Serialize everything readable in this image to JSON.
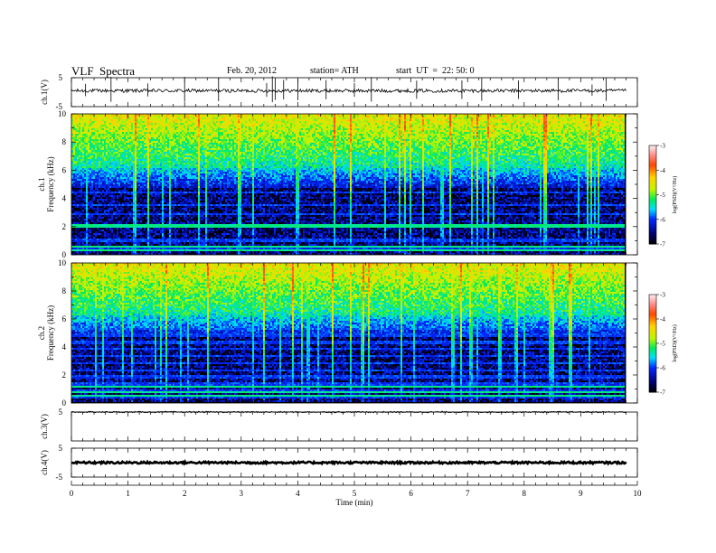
{
  "header": {
    "title": "VLF  Spectra",
    "date": "Feb. 20, 2012",
    "station": "station= ATH",
    "start": "start  UT  =  22: 50: 0"
  },
  "chart_data": [
    {
      "type": "line",
      "panel": "ch1-waveform",
      "ylabel": "ch.1(V)",
      "ylim": [
        -5,
        5
      ],
      "yticks": [
        "5",
        "-5"
      ],
      "xlim": [
        0,
        10
      ],
      "data_extent_min": 9.8,
      "baseline": 0.5,
      "noise": 0.6,
      "spike_times": [
        0.25,
        0.7,
        1.35,
        2.0,
        2.6,
        3.45,
        3.55,
        3.6,
        3.75,
        4.0,
        4.5,
        5.0,
        5.3,
        6.1,
        6.9,
        7.25,
        7.9,
        8.6,
        9.2,
        9.45
      ]
    },
    {
      "type": "heatmap",
      "panel": "ch1-spectrogram",
      "ylabel": "ch.1\nFrequency  (kHz)",
      "ylim": [
        0,
        10
      ],
      "yticks": [
        "0",
        "2",
        "4",
        "6",
        "8",
        "10"
      ],
      "xlim": [
        0,
        10
      ],
      "data_extent_min": 9.8,
      "colorbar": {
        "label": "log(PSD)(V²/Hz)",
        "range": [
          -7,
          -3
        ],
        "ticks": [
          "-3",
          "-4",
          "-5",
          "-6",
          "-7"
        ]
      },
      "harmonic_lines_khz": [
        0.5,
        1.0,
        2.05,
        2.9,
        3.5,
        4.4,
        5.8,
        6.2
      ],
      "dominant_band": "high log(PSD) (-5 to -4) above 6 kHz, low (-7) at 1-4 kHz",
      "strong_lines_khz": [
        0.35,
        0.55,
        2.05
      ]
    },
    {
      "type": "heatmap",
      "panel": "ch2-spectrogram",
      "ylabel": "ch.2\nFrequency  (kHz)",
      "ylim": [
        0,
        10
      ],
      "yticks": [
        "0",
        "2",
        "4",
        "6",
        "8",
        "10"
      ],
      "xlim": [
        0,
        10
      ],
      "data_extent_min": 9.8,
      "colorbar": {
        "label": "log(PSD)(V²/Hz)",
        "range": [
          -7,
          -3
        ],
        "ticks": [
          "-3",
          "-4",
          "-5",
          "-6",
          "-7"
        ]
      },
      "harmonic_lines_khz": [
        0.3,
        0.8,
        1.3,
        1.8,
        2.3,
        2.8,
        3.3,
        3.8,
        4.3,
        4.8,
        5.3
      ],
      "dominant_band": "high log(PSD) (-5 to -4) above 6 kHz, -6 lines below 5 kHz",
      "strong_lines_khz": [
        0.5,
        0.75,
        1.1
      ]
    },
    {
      "type": "line",
      "panel": "ch3-waveform",
      "ylabel": "ch.3(V)",
      "ylim": [
        -5,
        5
      ],
      "yticks": [
        "5"
      ],
      "xlim": [
        0,
        10
      ],
      "data_extent_min": 9.8,
      "baseline": 5.0,
      "noise": 0.25,
      "spike_times": []
    },
    {
      "type": "line",
      "panel": "ch4-waveform",
      "ylabel": "ch.4(V)",
      "ylim": [
        -5,
        5
      ],
      "yticks": [
        "5",
        "-5"
      ],
      "xlim": [
        0,
        10
      ],
      "data_extent_min": 9.8,
      "baseline": 0.0,
      "noise": 0.35,
      "spike_times": []
    }
  ],
  "xaxis": {
    "label": "Time  (min)",
    "ticks": [
      "0",
      "1",
      "2",
      "3",
      "4",
      "5",
      "6",
      "7",
      "8",
      "9",
      "10"
    ]
  },
  "colors": {
    "plot_bg_spectrogram": "#000000",
    "axis": "#000000",
    "waveform": "#000000"
  }
}
